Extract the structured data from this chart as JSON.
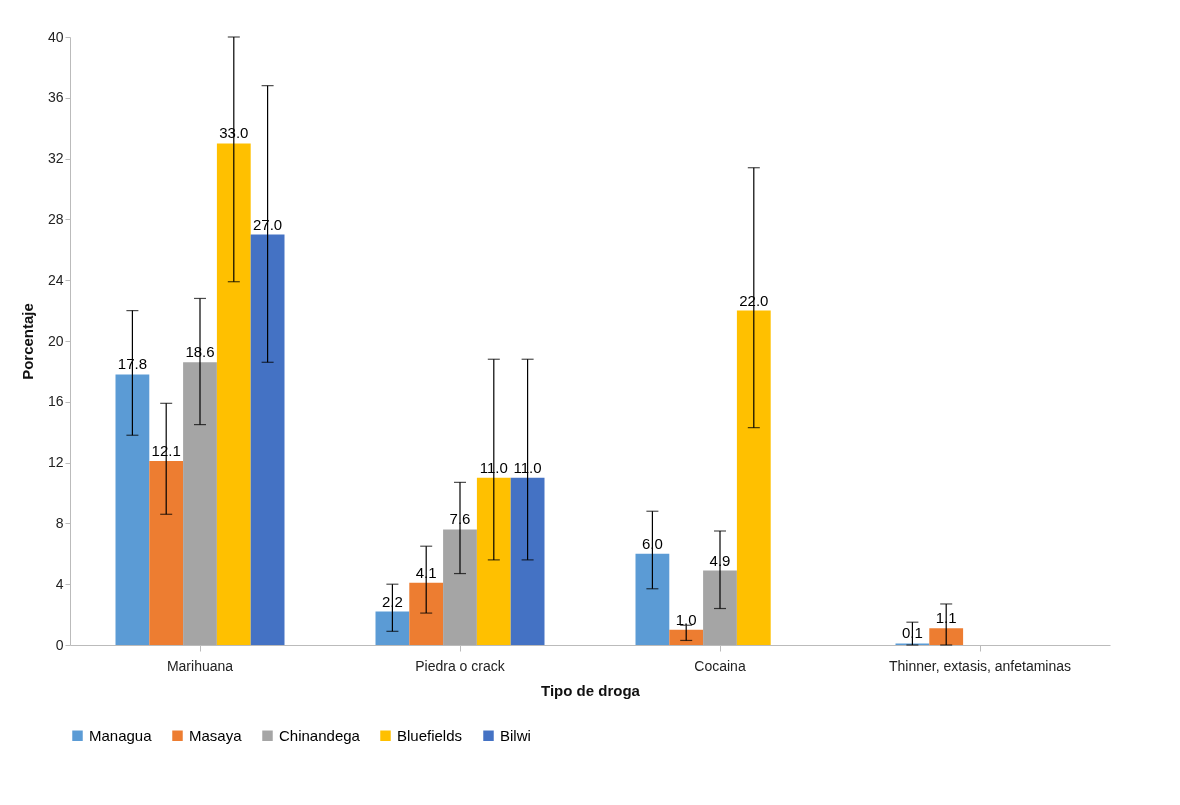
{
  "chart_data": {
    "type": "bar",
    "xlabel": "Tipo de droga",
    "ylabel": "Porcentaje",
    "categories": [
      "Marihuana",
      "Piedra o crack",
      "Cocaina",
      "Thinner, extasis, anfetaminas"
    ],
    "series": [
      {
        "name": "Managua",
        "color": "#5b9bd5",
        "values": [
          17.8,
          2.2,
          6.0,
          0.1
        ],
        "value_labels": [
          "17.8",
          "2.2",
          "6.0",
          "0.1"
        ],
        "errors": [
          [
            13.8,
            22.0
          ],
          [
            0.9,
            4.0
          ],
          [
            3.7,
            8.8
          ],
          [
            0,
            1.5
          ]
        ]
      },
      {
        "name": "Masaya",
        "color": "#ed7d31",
        "values": [
          12.1,
          4.1,
          1.0,
          1.1
        ],
        "value_labels": [
          "12.1",
          "4.1",
          "1.0",
          "1.1"
        ],
        "errors": [
          [
            8.6,
            15.9
          ],
          [
            2.1,
            6.5
          ],
          [
            0.3,
            1.3
          ],
          [
            0,
            2.7
          ]
        ]
      },
      {
        "name": "Chinandega",
        "color": "#a5a5a5",
        "values": [
          18.6,
          7.6,
          4.9,
          null
        ],
        "value_labels": [
          "18.6",
          "7.6",
          "4.9",
          null
        ],
        "errors": [
          [
            14.5,
            22.8
          ],
          [
            4.7,
            10.7
          ],
          [
            2.4,
            7.5
          ],
          null
        ]
      },
      {
        "name": "Bluefields",
        "color": "#ffc000",
        "values": [
          33.0,
          11.0,
          22.0,
          null
        ],
        "value_labels": [
          "33.0",
          "11.0",
          "22.0",
          null
        ],
        "errors": [
          [
            23.9,
            40
          ],
          [
            5.6,
            18.8
          ],
          [
            14.3,
            31.4
          ],
          null
        ]
      },
      {
        "name": "Bilwi",
        "color": "#4472c4",
        "values": [
          27.0,
          11.0,
          null,
          null
        ],
        "value_labels": [
          "27.0",
          "11.0",
          null,
          null
        ],
        "errors": [
          [
            18.6,
            36.8
          ],
          [
            5.6,
            18.8
          ],
          null,
          null
        ]
      }
    ],
    "ylim": [
      0,
      40
    ],
    "yticks": [
      0,
      4,
      8,
      12,
      16,
      20,
      24,
      28,
      32,
      36,
      40
    ],
    "grid": false,
    "legend": "bottom"
  }
}
